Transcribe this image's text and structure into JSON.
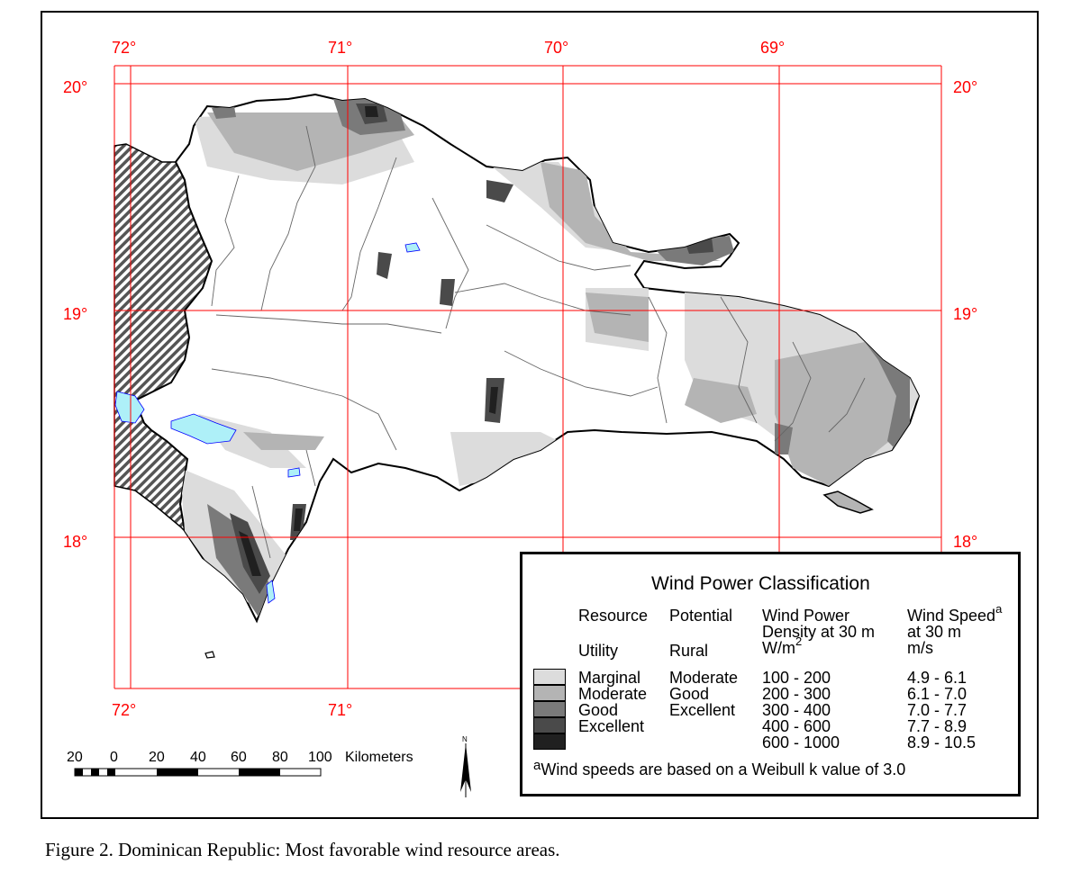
{
  "map": {
    "lon_labels_top": [
      "72°",
      "71°",
      "70°",
      "69°"
    ],
    "lon_labels_bottom": [
      "72°",
      "71°"
    ],
    "lat_labels_left": [
      "20°",
      "19°",
      "18°"
    ],
    "lat_labels_right": [
      "20°",
      "19°",
      "18°"
    ],
    "colors": {
      "grid": "#ff0000",
      "land": "#ffffff",
      "marginal": "#dcdcdc",
      "moderate": "#b4b4b4",
      "good": "#7a7a7a",
      "excellent": "#4a4a4a",
      "superb": "#202020",
      "water": "#aef0f8",
      "haiti_hatch": "#555555"
    }
  },
  "legend": {
    "title": "Wind Power Classification",
    "headers": {
      "resource": "Resource",
      "potential": "Potential",
      "power_line1": "Wind Power",
      "power_line2": "Density at 30 m",
      "power_line3": "W/m",
      "power_sup": "2",
      "speed_line1": "Wind Speed",
      "speed_sup": "a",
      "speed_line2": "at 30 m",
      "speed_line3": "m/s"
    },
    "subheaders": {
      "utility": "Utility",
      "rural": "Rural"
    },
    "classes": [
      {
        "utility": "Marginal",
        "rural": "Moderate",
        "power": "100 - 200",
        "speed": "4.9 - 6.1",
        "color": "#dcdcdc"
      },
      {
        "utility": "Moderate",
        "rural": "Good",
        "power": "200 - 300",
        "speed": "6.1 - 7.0",
        "color": "#b4b4b4"
      },
      {
        "utility": "Good",
        "rural": "Excellent",
        "power": "300 - 400",
        "speed": "7.0 - 7.7",
        "color": "#7a7a7a"
      },
      {
        "utility": "Excellent",
        "rural": "",
        "power": "400 - 600",
        "speed": "7.7 - 8.9",
        "color": "#4a4a4a"
      },
      {
        "utility": "",
        "rural": "",
        "power": "600 - 1000",
        "speed": "8.9 - 10.5",
        "color": "#202020"
      }
    ],
    "footnote_mark": "a",
    "footnote": "Wind speeds are based on a Weibull k value of 3.0"
  },
  "scale_bar": {
    "ticks": [
      "20",
      "0",
      "20",
      "40",
      "60",
      "80",
      "100"
    ],
    "unit": "Kilometers"
  },
  "north_arrow": {
    "label": "N"
  },
  "caption": "Figure 2.  Dominican Republic:  Most favorable wind resource areas."
}
